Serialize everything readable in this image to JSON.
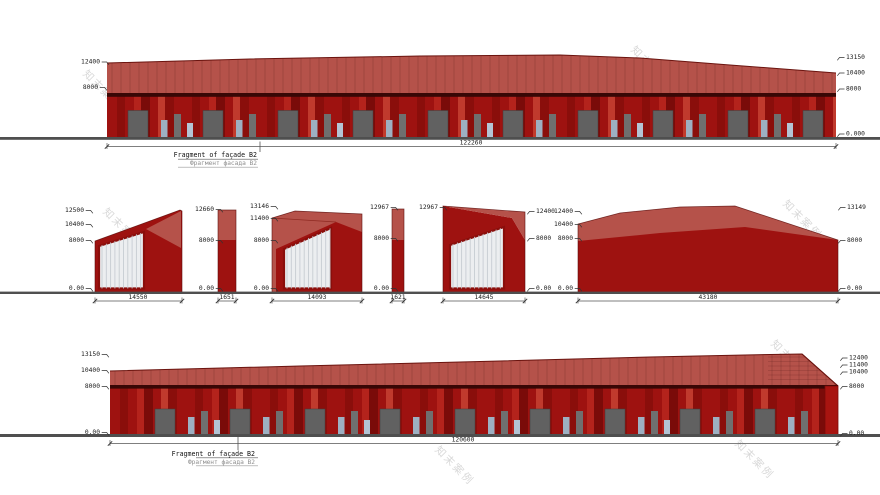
{
  "watermark": "知末案例",
  "colors": {
    "body": "#9e1210",
    "body_dark": "#7a0b09",
    "body_darker": "#8a0e0b",
    "body_bright": "#c03a2d",
    "body_mid": "#b4231c",
    "roof": "#b5524a",
    "roof_edge": "#6b140f",
    "panel": "#eceef0",
    "panel_line": "#c7ccd2",
    "door": "#616161",
    "window": "#9db0c2",
    "window_light": "#b3c4d4",
    "slit_gray": "#6f6f6f",
    "dark_strip": "#380705",
    "ground": "#4f4f4f",
    "dim_line": "#555555"
  },
  "top": {
    "levels_left": [
      "12400",
      "8000"
    ],
    "levels_right": [
      "13150",
      "10400",
      "8000",
      "0.000"
    ],
    "dim": "122260",
    "caption": {
      "en": "Fragment of façade B2",
      "ru": "Фрагмент фасада В2"
    }
  },
  "mid": {
    "s1": {
      "left": [
        "12500",
        "10400",
        "8000",
        "0.00"
      ],
      "dim": "14550"
    },
    "s2": {
      "left": [
        "12660",
        "8000",
        "0.00"
      ],
      "dim": "1651"
    },
    "s3": {
      "left": [
        "13146",
        "11400",
        "8000",
        "0.00"
      ],
      "dim": "14093"
    },
    "s4": {
      "left": [
        "12967",
        "8000",
        "0.00"
      ],
      "dim": "1621"
    },
    "s5": {
      "left": [
        "12967"
      ],
      "right": [
        "12400",
        "8000",
        "0.00"
      ],
      "dim": "14645"
    },
    "s6": {
      "left": [
        "12400",
        "10400",
        "8000",
        "0.00"
      ],
      "right": [
        "13149",
        "8000",
        "0.00"
      ],
      "dim": "43180"
    }
  },
  "bottom": {
    "levels_left": [
      "13150",
      "10400",
      "8000",
      "0.00"
    ],
    "levels_right": [
      "12400",
      "11400",
      "10400",
      "8000",
      "0.00"
    ],
    "dim": "120600",
    "caption": {
      "en": "Fragment of façade B2",
      "ru": "Фрагмент фасада В2"
    }
  }
}
